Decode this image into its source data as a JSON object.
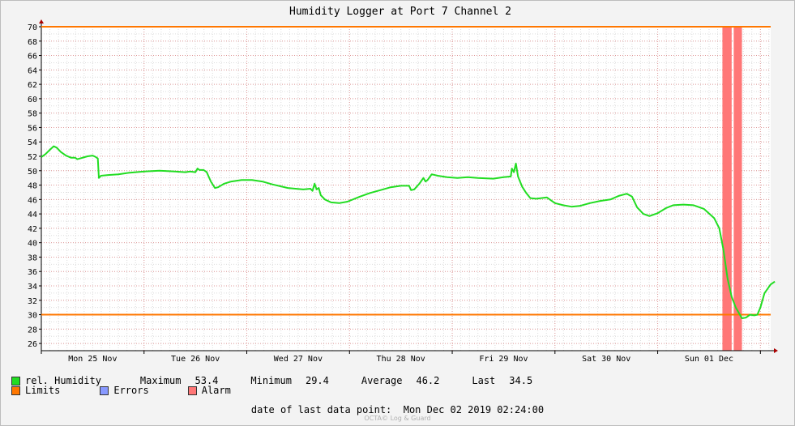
{
  "chart_data": {
    "type": "line",
    "title": "Humidity Logger at Port 7 Channel 2",
    "ylim": [
      25,
      70
    ],
    "yticks": [
      26,
      28,
      30,
      32,
      34,
      36,
      38,
      40,
      42,
      44,
      46,
      48,
      50,
      52,
      54,
      56,
      58,
      60,
      62,
      64,
      66,
      68,
      70
    ],
    "xlim": [
      0,
      7.1
    ],
    "x_ticks": [
      {
        "x": 0.5,
        "label": "Mon 25 Nov"
      },
      {
        "x": 1.5,
        "label": "Tue 26 Nov"
      },
      {
        "x": 2.5,
        "label": "Wed 27 Nov"
      },
      {
        "x": 3.5,
        "label": "Thu 28 Nov"
      },
      {
        "x": 4.5,
        "label": "Fri 29 Nov"
      },
      {
        "x": 5.5,
        "label": "Sat 30 Nov"
      },
      {
        "x": 6.5,
        "label": "Sun 01 Dec"
      }
    ],
    "limits": [
      30,
      70
    ],
    "alarm_spans": [
      [
        6.63,
        6.72
      ],
      [
        6.74,
        6.82
      ]
    ],
    "colors": {
      "series": "#22dd22",
      "limits": "#ff7700",
      "errors": "#8899ff",
      "alarm": "#ff7777",
      "grid_major": "#e07a7a",
      "grid_minor": "#dcdcdc"
    },
    "series": [
      {
        "name": "rel. Humidity",
        "points": [
          [
            0.0,
            51.9
          ],
          [
            0.04,
            52.3
          ],
          [
            0.09,
            53.0
          ],
          [
            0.12,
            53.4
          ],
          [
            0.15,
            53.2
          ],
          [
            0.19,
            52.6
          ],
          [
            0.24,
            52.1
          ],
          [
            0.29,
            51.8
          ],
          [
            0.33,
            51.8
          ],
          [
            0.35,
            51.6
          ],
          [
            0.4,
            51.8
          ],
          [
            0.45,
            52.0
          ],
          [
            0.5,
            52.1
          ],
          [
            0.53,
            51.9
          ],
          [
            0.55,
            51.7
          ],
          [
            0.56,
            49.0
          ],
          [
            0.58,
            49.3
          ],
          [
            0.65,
            49.4
          ],
          [
            0.75,
            49.5
          ],
          [
            0.85,
            49.7
          ],
          [
            1.0,
            49.9
          ],
          [
            1.15,
            50.0
          ],
          [
            1.3,
            49.9
          ],
          [
            1.4,
            49.8
          ],
          [
            1.45,
            49.9
          ],
          [
            1.5,
            49.8
          ],
          [
            1.52,
            50.3
          ],
          [
            1.54,
            50.1
          ],
          [
            1.58,
            50.1
          ],
          [
            1.61,
            49.8
          ],
          [
            1.65,
            48.5
          ],
          [
            1.69,
            47.6
          ],
          [
            1.72,
            47.7
          ],
          [
            1.78,
            48.2
          ],
          [
            1.85,
            48.5
          ],
          [
            1.95,
            48.7
          ],
          [
            2.05,
            48.7
          ],
          [
            2.15,
            48.5
          ],
          [
            2.25,
            48.1
          ],
          [
            2.4,
            47.6
          ],
          [
            2.55,
            47.4
          ],
          [
            2.62,
            47.5
          ],
          [
            2.64,
            47.2
          ],
          [
            2.66,
            48.2
          ],
          [
            2.68,
            47.4
          ],
          [
            2.7,
            47.6
          ],
          [
            2.72,
            46.6
          ],
          [
            2.76,
            46.0
          ],
          [
            2.82,
            45.6
          ],
          [
            2.9,
            45.5
          ],
          [
            2.98,
            45.7
          ],
          [
            3.1,
            46.4
          ],
          [
            3.2,
            46.9
          ],
          [
            3.3,
            47.3
          ],
          [
            3.4,
            47.7
          ],
          [
            3.5,
            47.9
          ],
          [
            3.58,
            47.9
          ],
          [
            3.6,
            47.3
          ],
          [
            3.63,
            47.4
          ],
          [
            3.68,
            48.2
          ],
          [
            3.72,
            49.0
          ],
          [
            3.74,
            48.5
          ],
          [
            3.76,
            48.7
          ],
          [
            3.8,
            49.5
          ],
          [
            3.86,
            49.3
          ],
          [
            3.95,
            49.1
          ],
          [
            4.05,
            49.0
          ],
          [
            4.15,
            49.1
          ],
          [
            4.25,
            49.0
          ],
          [
            4.4,
            48.9
          ],
          [
            4.5,
            49.1
          ],
          [
            4.57,
            49.2
          ],
          [
            4.58,
            50.3
          ],
          [
            4.6,
            49.8
          ],
          [
            4.62,
            51.0
          ],
          [
            4.64,
            49.2
          ],
          [
            4.68,
            47.8
          ],
          [
            4.72,
            46.9
          ],
          [
            4.76,
            46.2
          ],
          [
            4.82,
            46.1
          ],
          [
            4.92,
            46.3
          ],
          [
            5.0,
            45.5
          ],
          [
            5.08,
            45.2
          ],
          [
            5.16,
            45.0
          ],
          [
            5.24,
            45.1
          ],
          [
            5.34,
            45.5
          ],
          [
            5.44,
            45.8
          ],
          [
            5.54,
            46.0
          ],
          [
            5.62,
            46.5
          ],
          [
            5.7,
            46.8
          ],
          [
            5.75,
            46.4
          ],
          [
            5.8,
            44.9
          ],
          [
            5.86,
            44.0
          ],
          [
            5.92,
            43.7
          ],
          [
            6.0,
            44.1
          ],
          [
            6.08,
            44.8
          ],
          [
            6.15,
            45.2
          ],
          [
            6.25,
            45.3
          ],
          [
            6.35,
            45.2
          ],
          [
            6.45,
            44.7
          ],
          [
            6.55,
            43.4
          ],
          [
            6.6,
            42.0
          ],
          [
            6.64,
            39.0
          ],
          [
            6.68,
            35.0
          ],
          [
            6.72,
            32.5
          ],
          [
            6.76,
            31.0
          ],
          [
            6.8,
            30.0
          ],
          [
            6.82,
            29.5
          ],
          [
            6.86,
            29.6
          ],
          [
            6.9,
            30.0
          ],
          [
            6.94,
            29.9
          ],
          [
            6.97,
            30.0
          ],
          [
            7.0,
            31.0
          ],
          [
            7.04,
            33.0
          ],
          [
            7.1,
            34.2
          ],
          [
            7.14,
            34.6
          ]
        ]
      }
    ],
    "legend": [
      {
        "key": "humidity",
        "label": "rel. Humidity",
        "color": "#22dd22"
      },
      {
        "key": "limits",
        "label": "Limits",
        "color": "#ff7700"
      },
      {
        "key": "errors",
        "label": "Errors",
        "color": "#8899ff"
      },
      {
        "key": "alarm",
        "label": "Alarm",
        "color": "#ff7777"
      }
    ],
    "stats": {
      "maximum_label": "Maximum",
      "maximum": "53.4",
      "minimum_label": "Minimum",
      "minimum": "29.4",
      "average_label": "Average",
      "average": "46.2",
      "last_label": "Last",
      "last": "34.5"
    },
    "footer": "date of last data point:  Mon Dec 02 2019 02:24:00",
    "watermark": "OCTA© Log & Guard"
  }
}
